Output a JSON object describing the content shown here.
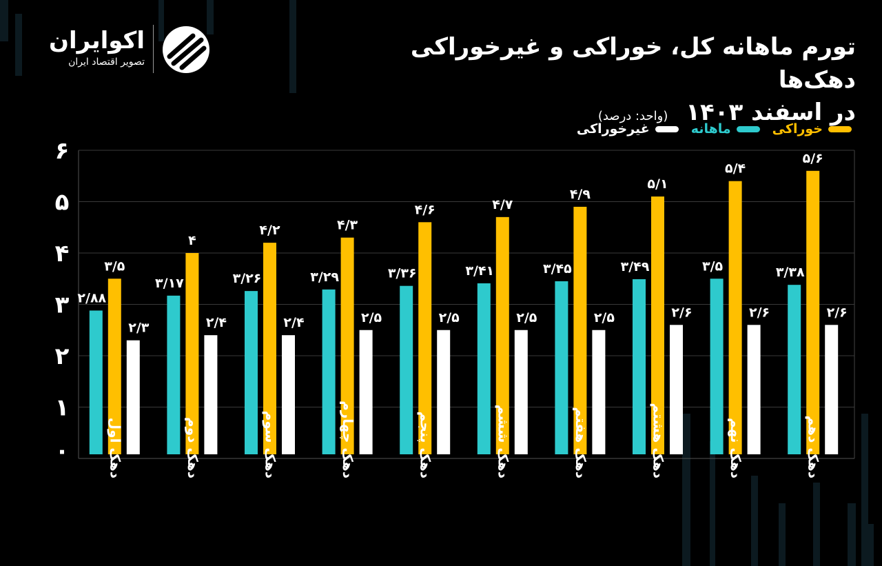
{
  "title": {
    "line1": "تورم ماهانه کل، خوراکی و غیرخوراکی دهک‌ها",
    "line2": "در اسفند ۱۴۰۳",
    "unit": "(واحد: درصد)"
  },
  "logo": {
    "name": "اکوایران",
    "subtitle": "تصویر اقتصاد ایران"
  },
  "colors": {
    "food": "#FFBF00",
    "monthly": "#2ECACD",
    "nonfood": "#FFFFFF",
    "grid": "#3a3a3a",
    "background": "#000000"
  },
  "chart_data": {
    "type": "bar",
    "title": "تورم ماهانه کل، خوراکی و غیرخوراکی دهک‌ها در اسفند ۱۴۰۳",
    "ylabel": "",
    "xlabel": "",
    "ylim": [
      0,
      6
    ],
    "y_ticks": [
      "۰",
      "۱",
      "۲",
      "۳",
      "۴",
      "۵",
      "۶"
    ],
    "grid": true,
    "legend_position": "top-right",
    "categories": [
      "دهک اول",
      "دهک دوم",
      "دهک سوم",
      "دهک چهارم",
      "دهک پنجم",
      "دهک ششم",
      "دهک هفتم",
      "دهک هشتم",
      "دهک نهم",
      "دهک دهم"
    ],
    "series": [
      {
        "name": "ماهانه",
        "color": "#2ECACD",
        "values": [
          2.88,
          3.17,
          3.26,
          3.29,
          3.36,
          3.41,
          3.45,
          3.49,
          3.5,
          3.38
        ],
        "labels": [
          "۲/۸۸",
          "۳/۱۷",
          "۳/۲۶",
          "۳/۲۹",
          "۳/۳۶",
          "۳/۴۱",
          "۳/۴۵",
          "۳/۴۹",
          "۳/۵",
          "۳/۳۸"
        ]
      },
      {
        "name": "خوراکی",
        "color": "#FFBF00",
        "values": [
          3.5,
          4,
          4.2,
          4.3,
          4.6,
          4.7,
          4.9,
          5.1,
          5.4,
          5.6
        ],
        "labels": [
          "۳/۵",
          "۴",
          "۴/۲",
          "۴/۳",
          "۴/۶",
          "۴/۷",
          "۴/۹",
          "۵/۱",
          "۵/۴",
          "۵/۶"
        ]
      },
      {
        "name": "غیرخوراکی",
        "color": "#FFFFFF",
        "values": [
          2.3,
          2.4,
          2.4,
          2.5,
          2.5,
          2.5,
          2.5,
          2.6,
          2.6,
          2.6
        ],
        "labels": [
          "۲/۳",
          "۲/۴",
          "۲/۴",
          "۲/۵",
          "۲/۵",
          "۲/۵",
          "۲/۵",
          "۲/۶",
          "۲/۶",
          "۲/۶"
        ]
      }
    ],
    "legend": [
      {
        "name": "خوراکی",
        "color": "#FFBF00"
      },
      {
        "name": "ماهانه",
        "color": "#2ECACD"
      },
      {
        "name": "غیرخوراکی",
        "color": "#FFFFFF"
      }
    ]
  }
}
